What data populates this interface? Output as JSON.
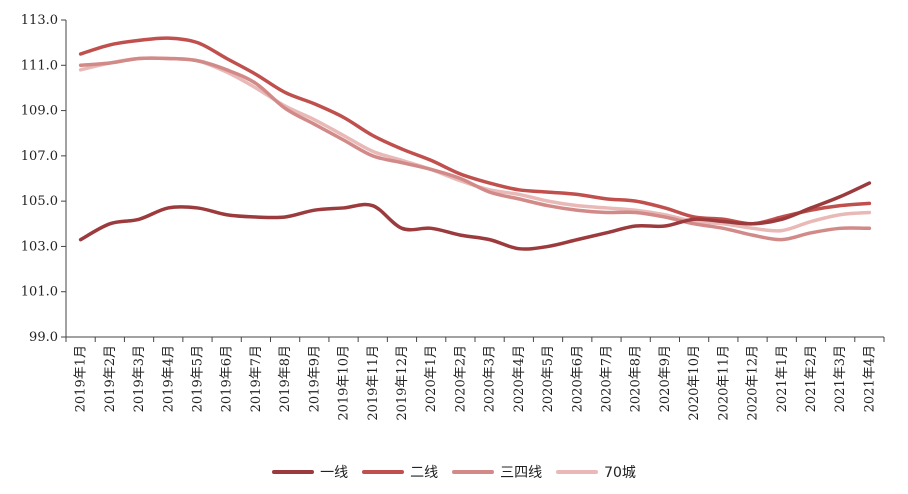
{
  "chart_data": {
    "type": "line",
    "title": "",
    "xlabel": "",
    "ylabel": "",
    "ylim": [
      99.0,
      113.0
    ],
    "yticks": [
      "99.0",
      "101.0",
      "103.0",
      "105.0",
      "107.0",
      "109.0",
      "111.0",
      "113.0"
    ],
    "grid": false,
    "legend_position": "bottom",
    "categories": [
      "2019年1月",
      "2019年2月",
      "2019年3月",
      "2019年4月",
      "2019年5月",
      "2019年6月",
      "2019年7月",
      "2019年8月",
      "2019年9月",
      "2019年10月",
      "2019年11月",
      "2019年12月",
      "2020年1月",
      "2020年2月",
      "2020年3月",
      "2020年4月",
      "2020年5月",
      "2020年6月",
      "2020年7月",
      "2020年8月",
      "2020年9月",
      "2020年10月",
      "2020年11月",
      "2020年12月",
      "2021年1月",
      "2021年2月",
      "2021年3月",
      "2021年4月"
    ],
    "series": [
      {
        "name": "一线",
        "color": "#9c3b3d",
        "values": [
          103.3,
          104.0,
          104.2,
          104.7,
          104.7,
          104.4,
          104.3,
          104.3,
          104.6,
          104.7,
          104.8,
          103.8,
          103.8,
          103.5,
          103.3,
          102.9,
          103.0,
          103.3,
          103.6,
          103.9,
          103.9,
          104.2,
          104.1,
          104.0,
          104.2,
          104.7,
          105.2,
          105.8
        ]
      },
      {
        "name": "二线",
        "color": "#c0504d",
        "values": [
          111.5,
          111.9,
          112.1,
          112.2,
          112.0,
          111.3,
          110.6,
          109.8,
          109.3,
          108.7,
          107.9,
          107.3,
          106.8,
          106.2,
          105.8,
          105.5,
          105.4,
          105.3,
          105.1,
          105.0,
          104.7,
          104.3,
          104.2,
          104.0,
          104.3,
          104.6,
          104.8,
          104.9
        ]
      },
      {
        "name": "三四线",
        "color": "#d28a88",
        "values": [
          111.0,
          111.1,
          111.3,
          111.3,
          111.2,
          110.8,
          110.2,
          109.1,
          108.4,
          107.7,
          107.0,
          106.7,
          106.4,
          106.0,
          105.4,
          105.1,
          104.8,
          104.6,
          104.5,
          104.5,
          104.3,
          104.0,
          103.8,
          103.5,
          103.3,
          103.6,
          103.8,
          103.8
        ]
      },
      {
        "name": "70城",
        "color": "#e8b9b7",
        "values": [
          110.8,
          111.1,
          111.3,
          111.3,
          111.2,
          110.7,
          110.0,
          109.2,
          108.6,
          107.9,
          107.2,
          106.8,
          106.4,
          105.9,
          105.5,
          105.3,
          105.0,
          104.8,
          104.7,
          104.6,
          104.4,
          104.1,
          104.0,
          103.8,
          103.7,
          104.1,
          104.4,
          104.5
        ]
      }
    ]
  }
}
